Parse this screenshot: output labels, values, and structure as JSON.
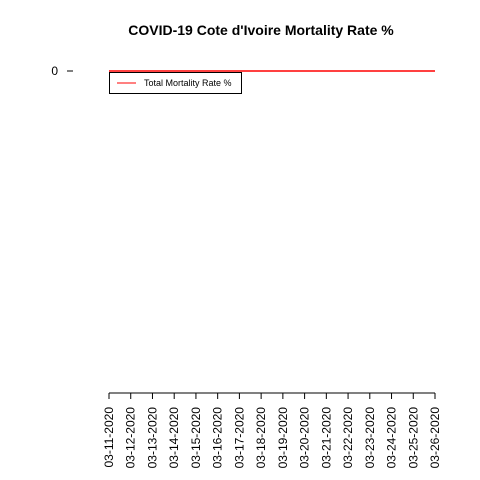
{
  "chart_data": {
    "type": "line",
    "title": "COVID-19 Cote d'Ivoire Mortality Rate %",
    "xlabel": "",
    "ylabel": "",
    "x": [
      "03-11-2020",
      "03-12-2020",
      "03-13-2020",
      "03-14-2020",
      "03-15-2020",
      "03-16-2020",
      "03-17-2020",
      "03-18-2020",
      "03-19-2020",
      "03-20-2020",
      "03-21-2020",
      "03-22-2020",
      "03-23-2020",
      "03-24-2020",
      "03-25-2020",
      "03-26-2020"
    ],
    "series": [
      {
        "name": "Total Mortality Rate %",
        "color": "#ff0000",
        "values": [
          0,
          0,
          0,
          0,
          0,
          0,
          0,
          0,
          0,
          0,
          0,
          0,
          0,
          0,
          0,
          0
        ]
      }
    ],
    "y_ticks": [
      0
    ],
    "y_tick_labels": [
      "0"
    ],
    "legend_position": "top-left",
    "grid": false
  }
}
